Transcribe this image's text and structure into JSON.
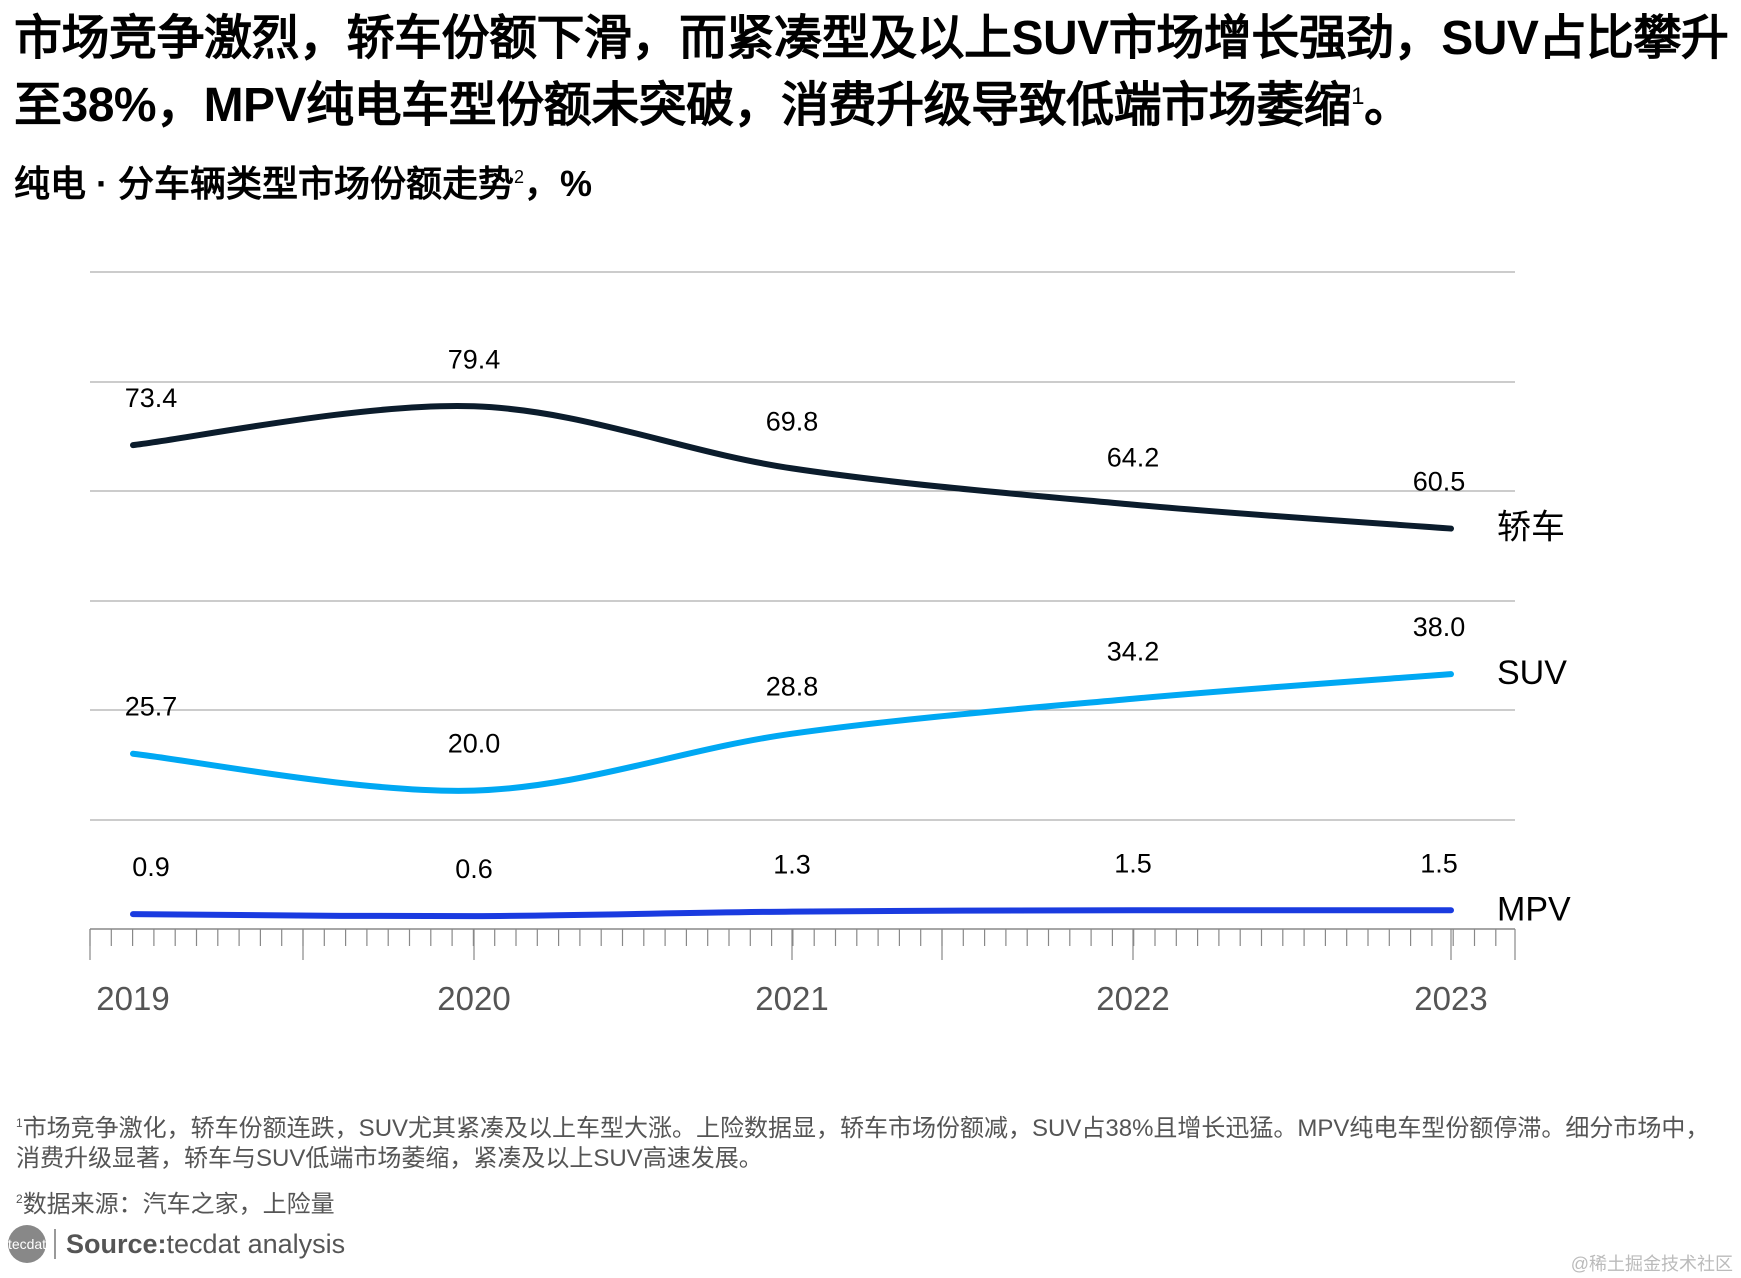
{
  "title": "市场竞争激烈，轿车份额下滑，而紧凑型及以上SUV市场增长强劲，SUV占比攀升至38%，MPV纯电车型份额未突破，消费升级导致低端市场萎缩",
  "title_sup": "1",
  "title_end": "。",
  "subtitle": "纯电 · 分车辆类型市场份额走势",
  "subtitle_sup": "2",
  "subtitle_end": "，%",
  "chart_data": {
    "type": "line",
    "categories": [
      "2019",
      "2020",
      "2021",
      "2022",
      "2023"
    ],
    "series": [
      {
        "name": "轿车",
        "values": [
          73.4,
          79.4,
          69.8,
          64.2,
          60.5
        ],
        "color": "#0b1c2c"
      },
      {
        "name": "SUV",
        "values": [
          25.7,
          20.0,
          28.8,
          34.2,
          38.0
        ],
        "color": "#00a8f3"
      },
      {
        "name": "MPV",
        "values": [
          0.9,
          0.6,
          1.3,
          1.5,
          1.5
        ],
        "color": "#1a3be0"
      }
    ],
    "grid": true,
    "smooth": true
  },
  "notes": {
    "note1_sup": "1",
    "note1": "市场竞争激化，轿车份额连跌，SUV尤其紧凑及以上车型大涨。上险数据显，轿车市场份额减，SUV占38%且增长迅猛。MPV纯电车型份额停滞。细分市场中，消费升级显著，轿车与SUV低端市场萎缩，紧凑及以上SUV高速发展。",
    "note2_sup": "2",
    "note2": "数据来源：汽车之家，上险量"
  },
  "source": {
    "logo": "tecdat",
    "label": "Source:",
    "text": " tecdat analysis"
  },
  "watermark": "@稀土掘金技术社区"
}
